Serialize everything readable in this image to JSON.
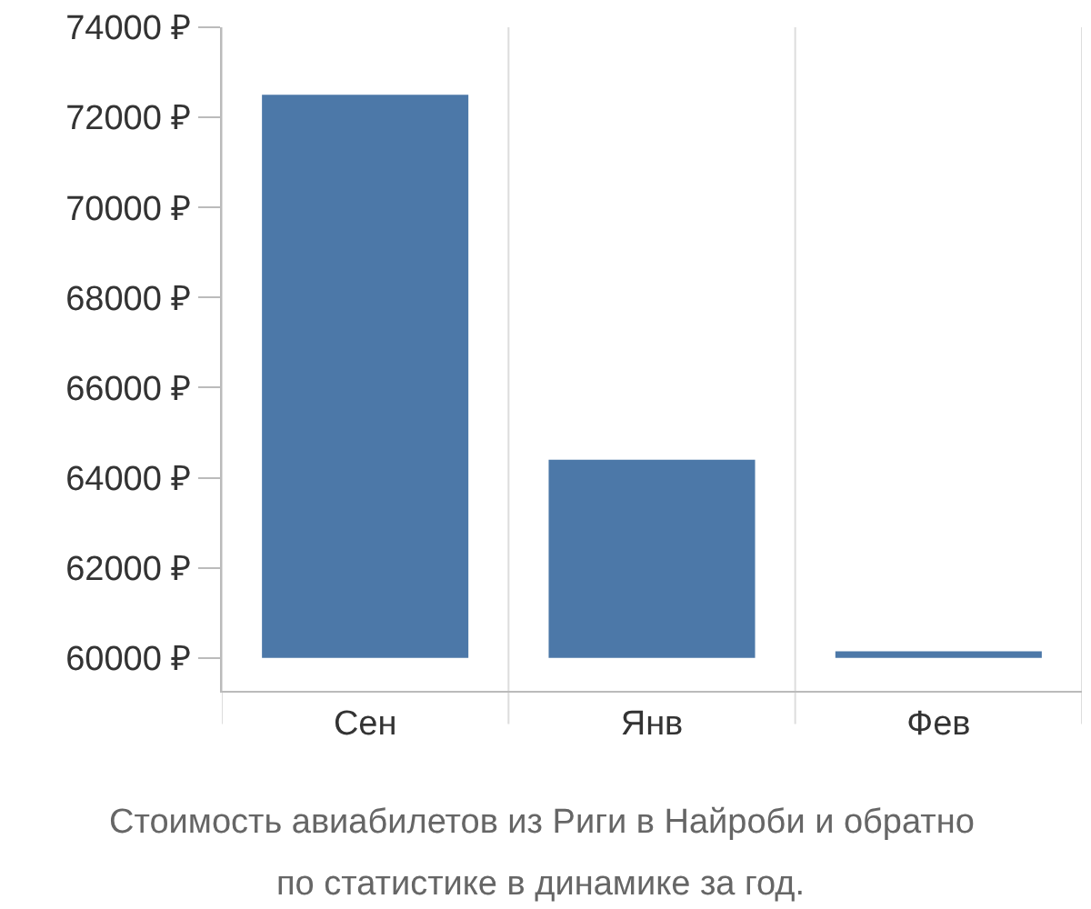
{
  "chart_data": {
    "type": "bar",
    "categories": [
      "Сен",
      "Янв",
      "Фев"
    ],
    "base": [
      60000,
      60000,
      60000
    ],
    "values": [
      12500,
      4400,
      150
    ],
    "color": "#4c78a8",
    "ylim": [
      59270,
      74000
    ],
    "yticks": [
      {
        "value": 60000,
        "label": "60000 ₽"
      },
      {
        "value": 62000,
        "label": "62000 ₽"
      },
      {
        "value": 64000,
        "label": "64000 ₽"
      },
      {
        "value": 66000,
        "label": "66000 ₽"
      },
      {
        "value": 68000,
        "label": "68000 ₽"
      },
      {
        "value": 70000,
        "label": "70000 ₽"
      },
      {
        "value": 72000,
        "label": "72000 ₽"
      },
      {
        "value": 74000,
        "label": "74000 ₽"
      }
    ],
    "grid": "x",
    "annotations": [
      "Стоимость авиабилетов из Риги в Найроби и обратно",
      "по статистике в динамике за год."
    ]
  }
}
